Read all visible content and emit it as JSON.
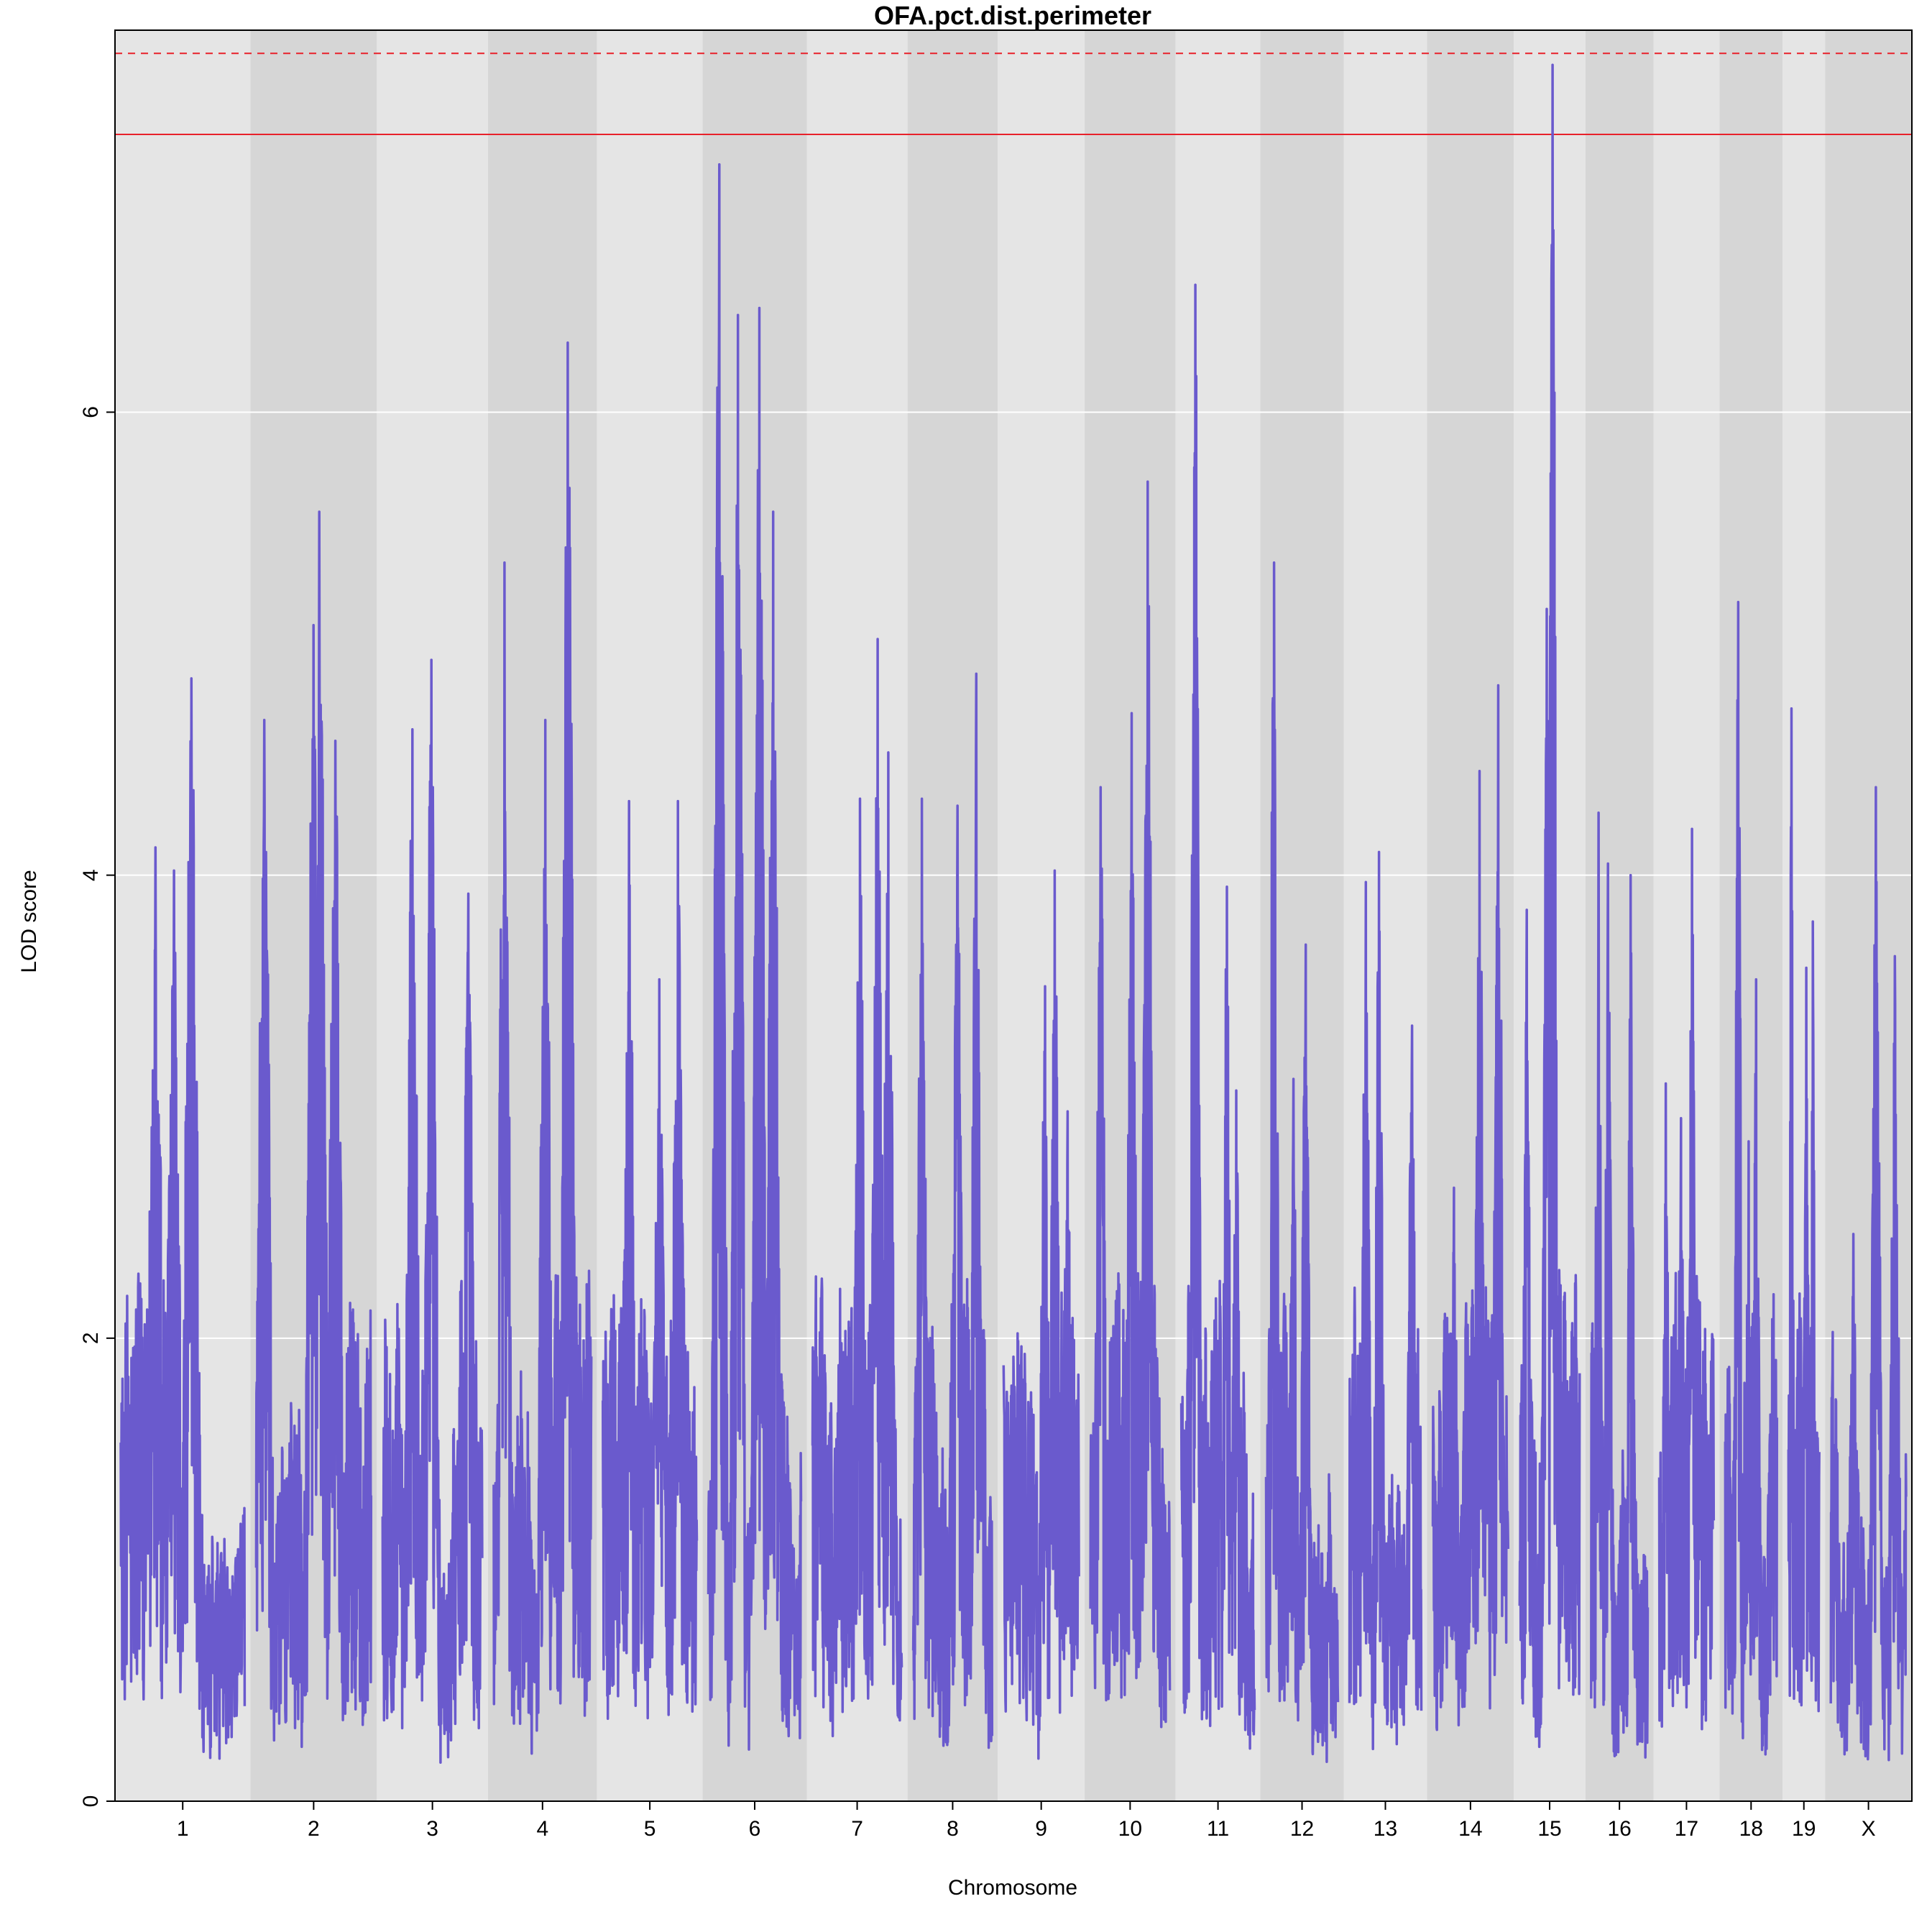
{
  "chart_data": {
    "type": "line",
    "title": "OFA.pct.dist.perimeter",
    "xlabel": "Chromosome",
    "ylabel": "LOD score",
    "ylim": [
      0,
      7.65
    ],
    "yticks": [
      0,
      2,
      4,
      6
    ],
    "grid": true,
    "line_color": "#6a5acd",
    "band_colors": [
      "#e5e5e5",
      "#d6d6d6"
    ],
    "thresholds": [
      {
        "value": 7.55,
        "style": "dashed",
        "color": "#e8202a"
      },
      {
        "value": 7.2,
        "style": "solid",
        "color": "#e8202a"
      }
    ],
    "chromosomes": [
      {
        "name": "1",
        "length": 195,
        "peaks": [
          {
            "pos": 0.57,
            "lod": 4.85
          },
          {
            "pos": 0.28,
            "lod": 4.12
          },
          {
            "pos": 0.43,
            "lod": 4.02
          }
        ]
      },
      {
        "name": "2",
        "length": 182,
        "peaks": [
          {
            "pos": 0.55,
            "lod": 5.57
          },
          {
            "pos": 0.5,
            "lod": 5.08
          },
          {
            "pos": 0.69,
            "lod": 4.58
          },
          {
            "pos": 0.07,
            "lod": 4.67
          }
        ]
      },
      {
        "name": "3",
        "length": 160,
        "peaks": [
          {
            "pos": 0.49,
            "lod": 4.93
          },
          {
            "pos": 0.3,
            "lod": 4.63
          },
          {
            "pos": 0.86,
            "lod": 3.92
          }
        ]
      },
      {
        "name": "4",
        "length": 157,
        "peaks": [
          {
            "pos": 0.76,
            "lod": 6.3
          },
          {
            "pos": 0.11,
            "lod": 5.35
          },
          {
            "pos": 0.53,
            "lod": 4.67
          }
        ]
      },
      {
        "name": "5",
        "length": 152,
        "peaks": [
          {
            "pos": 0.28,
            "lod": 4.32
          },
          {
            "pos": 0.8,
            "lod": 4.32
          },
          {
            "pos": 0.6,
            "lod": 3.55
          }
        ]
      },
      {
        "name": "6",
        "length": 150,
        "peaks": [
          {
            "pos": 0.12,
            "lod": 7.07
          },
          {
            "pos": 0.32,
            "lod": 6.42
          },
          {
            "pos": 0.55,
            "lod": 6.45
          },
          {
            "pos": 0.7,
            "lod": 5.57
          }
        ]
      },
      {
        "name": "7",
        "length": 145,
        "peaks": [
          {
            "pos": 0.73,
            "lod": 5.02
          },
          {
            "pos": 0.53,
            "lod": 4.33
          },
          {
            "pos": 0.85,
            "lod": 4.53
          }
        ]
      },
      {
        "name": "8",
        "length": 130,
        "peaks": [
          {
            "pos": 0.8,
            "lod": 4.87
          },
          {
            "pos": 0.11,
            "lod": 4.33
          },
          {
            "pos": 0.56,
            "lod": 4.3
          }
        ]
      },
      {
        "name": "9",
        "length": 125,
        "peaks": [
          {
            "pos": 0.68,
            "lod": 4.02
          },
          {
            "pos": 0.55,
            "lod": 3.52
          },
          {
            "pos": 0.85,
            "lod": 2.98
          }
        ]
      },
      {
        "name": "10",
        "length": 131,
        "peaks": [
          {
            "pos": 0.72,
            "lod": 5.7
          },
          {
            "pos": 0.52,
            "lod": 4.7
          },
          {
            "pos": 0.13,
            "lod": 4.38
          }
        ]
      },
      {
        "name": "11",
        "length": 122,
        "peaks": [
          {
            "pos": 0.19,
            "lod": 6.55
          },
          {
            "pos": 0.62,
            "lod": 3.95
          },
          {
            "pos": 0.75,
            "lod": 3.07
          }
        ]
      },
      {
        "name": "12",
        "length": 120,
        "peaks": [
          {
            "pos": 0.11,
            "lod": 5.35
          },
          {
            "pos": 0.55,
            "lod": 3.7
          },
          {
            "pos": 0.38,
            "lod": 3.12
          }
        ]
      },
      {
        "name": "13",
        "length": 120,
        "peaks": [
          {
            "pos": 0.41,
            "lod": 4.1
          },
          {
            "pos": 0.23,
            "lod": 3.97
          },
          {
            "pos": 0.87,
            "lod": 3.35
          }
        ]
      },
      {
        "name": "14",
        "length": 125,
        "peaks": [
          {
            "pos": 0.87,
            "lod": 4.82
          },
          {
            "pos": 0.62,
            "lod": 4.45
          },
          {
            "pos": 0.28,
            "lod": 2.65
          }
        ]
      },
      {
        "name": "15",
        "length": 103,
        "peaks": [
          {
            "pos": 0.55,
            "lod": 7.5
          },
          {
            "pos": 0.45,
            "lod": 5.15
          },
          {
            "pos": 0.12,
            "lod": 3.85
          }
        ]
      },
      {
        "name": "16",
        "length": 98,
        "peaks": [
          {
            "pos": 0.13,
            "lod": 4.27
          },
          {
            "pos": 0.3,
            "lod": 4.05
          },
          {
            "pos": 0.7,
            "lod": 4.0
          }
        ]
      },
      {
        "name": "17",
        "length": 95,
        "peaks": [
          {
            "pos": 0.6,
            "lod": 4.2
          },
          {
            "pos": 0.12,
            "lod": 3.1
          },
          {
            "pos": 0.4,
            "lod": 2.95
          }
        ]
      },
      {
        "name": "18",
        "length": 91,
        "peaks": [
          {
            "pos": 0.25,
            "lod": 5.18
          },
          {
            "pos": 0.6,
            "lod": 3.55
          },
          {
            "pos": 0.45,
            "lod": 2.85
          }
        ]
      },
      {
        "name": "19",
        "length": 61,
        "peaks": [
          {
            "pos": 0.79,
            "lod": 3.8
          },
          {
            "pos": 0.1,
            "lod": 4.72
          },
          {
            "pos": 0.58,
            "lod": 3.6
          }
        ]
      },
      {
        "name": "X",
        "length": 125,
        "peaks": [
          {
            "pos": 0.6,
            "lod": 4.38
          },
          {
            "pos": 0.85,
            "lod": 3.65
          },
          {
            "pos": 0.3,
            "lod": 2.45
          }
        ]
      }
    ]
  }
}
